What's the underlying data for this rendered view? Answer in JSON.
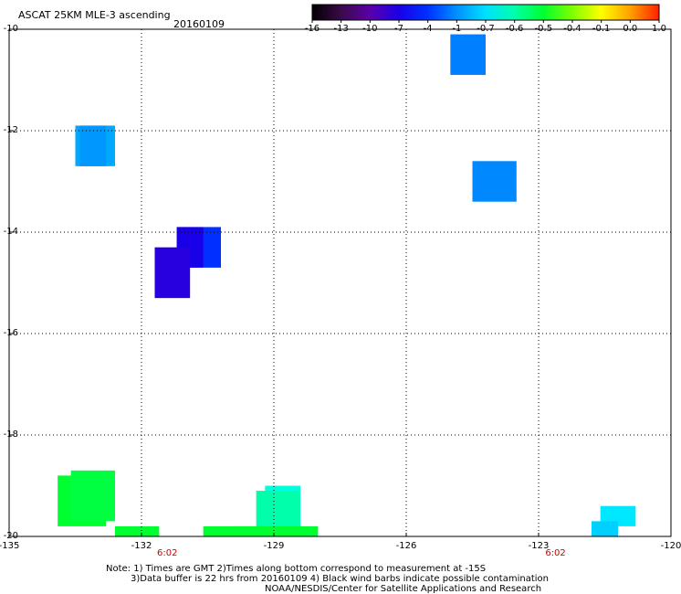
{
  "header": {
    "title": "ASCAT 25KM MLE-3 ascending",
    "date": "20160109"
  },
  "colorbar": {
    "ticks": [
      "-16",
      "-13",
      "-10",
      "-7",
      "-4",
      "-1",
      "-0.7",
      "-0.6",
      "-0.5",
      "-0.4",
      "-0.1",
      "0.0",
      "1.0"
    ],
    "colors": [
      "#000000",
      "#3a0a4a",
      "#5a00a8",
      "#1a00e8",
      "#0030ff",
      "#0090ff",
      "#00e0ff",
      "#00ffaa",
      "#00ff30",
      "#80ff00",
      "#ffff00",
      "#ffa000",
      "#ff2000"
    ]
  },
  "axes": {
    "lat_labels": [
      "-10",
      "-12",
      "-14",
      "-16",
      "-18",
      "-20"
    ],
    "lon_labels": [
      "-135",
      "-132",
      "-129",
      "-126",
      "-123",
      "-120"
    ],
    "lat_range": [
      -20,
      -10
    ],
    "lon_range": [
      -135,
      -120
    ]
  },
  "pass_times": [
    {
      "label": "6:02",
      "lon": -131.4
    },
    {
      "label": "6:02",
      "lon": -122.6
    }
  ],
  "cells": [
    {
      "lon": [
        -125.0,
        -124.2
      ],
      "lat": [
        -10.9,
        -10.1
      ],
      "color": "#0080ff"
    },
    {
      "lon": [
        -133.5,
        -132.6
      ],
      "lat": [
        -12.7,
        -11.9
      ],
      "color": "#00a8ff"
    },
    {
      "lon": [
        -133.4,
        -132.8
      ],
      "lat": [
        -12.7,
        -11.9
      ],
      "color": "#0098ff"
    },
    {
      "lon": [
        -124.5,
        -123.5
      ],
      "lat": [
        -13.4,
        -12.6
      ],
      "color": "#0088ff"
    },
    {
      "lon": [
        -131.2,
        -130.2
      ],
      "lat": [
        -14.7,
        -13.9
      ],
      "color": "#0030ff"
    },
    {
      "lon": [
        -131.2,
        -130.6
      ],
      "lat": [
        -14.7,
        -13.9
      ],
      "color": "#1800e8"
    },
    {
      "lon": [
        -131.7,
        -130.9
      ],
      "lat": [
        -15.3,
        -14.3
      ],
      "color": "#2800e0"
    },
    {
      "lon": [
        -133.9,
        -132.8
      ],
      "lat": [
        -19.8,
        -18.8
      ],
      "color": "#00ff30"
    },
    {
      "lon": [
        -133.6,
        -132.6
      ],
      "lat": [
        -19.7,
        -18.7
      ],
      "color": "#00ff40"
    },
    {
      "lon": [
        -132.6,
        -131.6
      ],
      "lat": [
        -20.0,
        -19.8
      ],
      "color": "#00ff30"
    },
    {
      "lon": [
        -129.2,
        -128.4
      ],
      "lat": [
        -19.2,
        -19.0
      ],
      "color": "#00ffdd"
    },
    {
      "lon": [
        -129.4,
        -128.4
      ],
      "lat": [
        -19.9,
        -19.1
      ],
      "color": "#00ffaa"
    },
    {
      "lon": [
        -129.9,
        -128.6
      ],
      "lat": [
        -20.0,
        -19.8
      ],
      "color": "#00ff40"
    },
    {
      "lon": [
        -130.6,
        -128.0
      ],
      "lat": [
        -20.0,
        -19.8
      ],
      "color": "#00ff30"
    },
    {
      "lon": [
        -121.6,
        -120.8
      ],
      "lat": [
        -19.8,
        -19.4
      ],
      "color": "#00e8ff"
    },
    {
      "lon": [
        -121.8,
        -121.2
      ],
      "lat": [
        -20.0,
        -19.7
      ],
      "color": "#00d0ff"
    }
  ],
  "notes": {
    "line1": "Note: 1) Times are GMT 2)Times along bottom correspond to measurement at -15S",
    "line2": "3)Data buffer is 22 hrs from 20160109 4) Black wind barbs indicate possible contamination",
    "line3": "NOAA/NESDIS/Center for Satellite Applications and Research"
  }
}
